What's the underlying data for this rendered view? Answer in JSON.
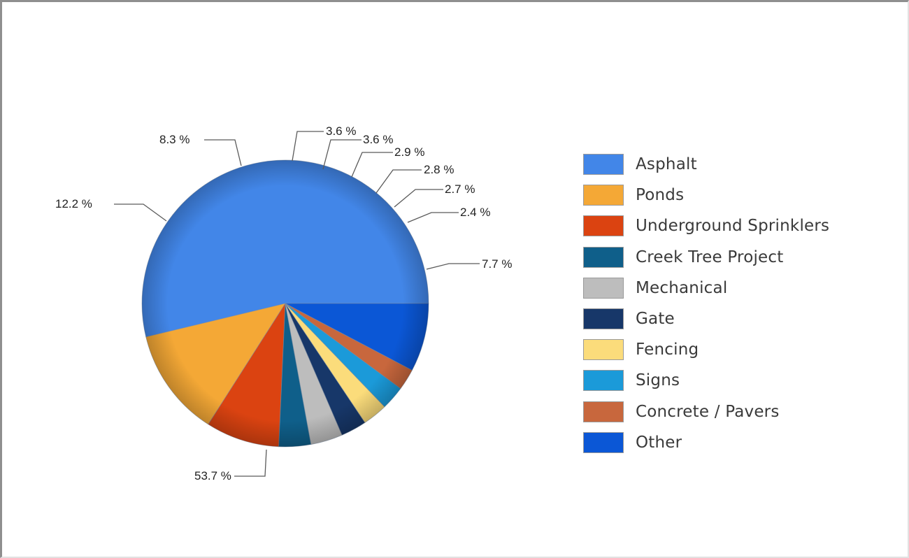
{
  "chart_data": {
    "type": "pie",
    "title": "",
    "legend_position": "right",
    "start_angle_deg": 0,
    "direction": "counterclockwise",
    "slices": [
      {
        "label": "Asphalt",
        "value": 53.7,
        "display": "53.7 %",
        "color": "#4286e8"
      },
      {
        "label": "Ponds",
        "value": 12.2,
        "display": "12.2 %",
        "color": "#f4a836"
      },
      {
        "label": "Underground Sprinklers",
        "value": 8.3,
        "display": "8.3 %",
        "color": "#db4311"
      },
      {
        "label": "Creek Tree Project",
        "value": 3.6,
        "display": "3.6 %",
        "color": "#0f5f8a"
      },
      {
        "label": "Mechanical",
        "value": 3.6,
        "display": "3.6 %",
        "color": "#bdbdbd"
      },
      {
        "label": "Gate",
        "value": 2.9,
        "display": "2.9 %",
        "color": "#173769"
      },
      {
        "label": "Fencing",
        "value": 2.8,
        "display": "2.8 %",
        "color": "#fbdc7b"
      },
      {
        "label": "Signs",
        "value": 2.7,
        "display": "2.7 %",
        "color": "#1b9ad9"
      },
      {
        "label": "Concrete / Pavers",
        "value": 2.4,
        "display": "2.4 %",
        "color": "#c8673d"
      },
      {
        "label": "Other",
        "value": 7.7,
        "display": "7.7 %",
        "color": "#0b57d6"
      }
    ]
  }
}
